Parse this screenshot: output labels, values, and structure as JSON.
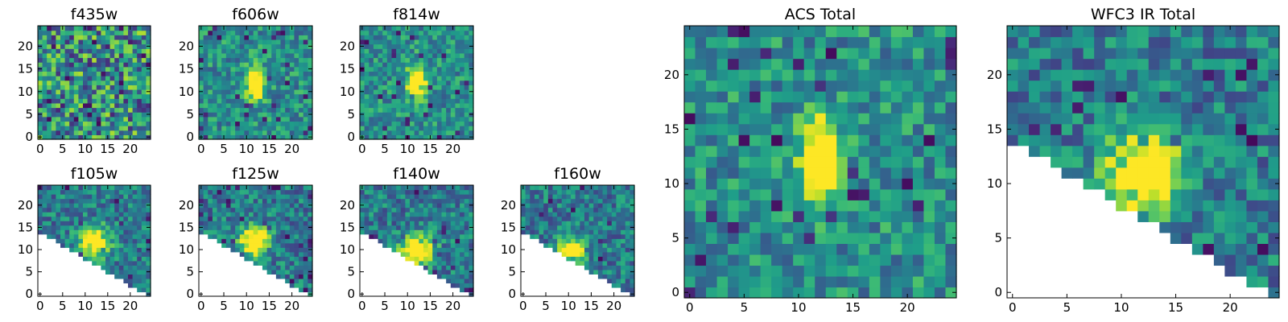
{
  "chart_data": [
    {
      "type": "heatmap",
      "title": "f435w",
      "xticks": [
        "0",
        "5",
        "10",
        "15",
        "20"
      ],
      "yticks": [
        "0",
        "5",
        "10",
        "15",
        "20"
      ],
      "xlim": [
        0,
        25
      ],
      "ylim": [
        0,
        25
      ],
      "grid_size": [
        25,
        25
      ],
      "colormap": "viridis",
      "source_masked": false,
      "peak": null
    },
    {
      "type": "heatmap",
      "title": "f606w",
      "xticks": [
        "0",
        "5",
        "10",
        "15",
        "20"
      ],
      "yticks": [
        "0",
        "5",
        "10",
        "15",
        "20"
      ],
      "xlim": [
        0,
        25
      ],
      "ylim": [
        0,
        25
      ],
      "grid_size": [
        25,
        25
      ],
      "colormap": "viridis",
      "source_masked": false,
      "peak": {
        "x": 12,
        "y": 12,
        "sx": 1.3,
        "sy": 2.5,
        "amp": 1.0
      }
    },
    {
      "type": "heatmap",
      "title": "f814w",
      "xticks": [
        "0",
        "5",
        "10",
        "15",
        "20"
      ],
      "yticks": [
        "0",
        "5",
        "10",
        "15",
        "20"
      ],
      "xlim": [
        0,
        25
      ],
      "ylim": [
        0,
        25
      ],
      "grid_size": [
        25,
        25
      ],
      "colormap": "viridis",
      "source_masked": false,
      "peak": {
        "x": 12,
        "y": 12,
        "sx": 1.3,
        "sy": 2.5,
        "amp": 1.0
      }
    },
    {
      "type": "heatmap",
      "title": "f105w",
      "xticks": [
        "0",
        "5",
        "10",
        "15",
        "20"
      ],
      "yticks": [
        "0",
        "5",
        "10",
        "15",
        "20"
      ],
      "xlim": [
        0,
        25
      ],
      "ylim": [
        0,
        25
      ],
      "grid_size": [
        25,
        25
      ],
      "colormap": "viridis",
      "source_masked": true,
      "peak": {
        "x": 12,
        "y": 12,
        "sx": 2.2,
        "sy": 2.2,
        "amp": 0.9
      }
    },
    {
      "type": "heatmap",
      "title": "f125w",
      "xticks": [
        "0",
        "5",
        "10",
        "15",
        "20"
      ],
      "yticks": [
        "0",
        "5",
        "10",
        "15",
        "20"
      ],
      "xlim": [
        0,
        25
      ],
      "ylim": [
        0,
        25
      ],
      "grid_size": [
        25,
        25
      ],
      "colormap": "viridis",
      "source_masked": true,
      "peak": {
        "x": 12,
        "y": 12,
        "sx": 2.2,
        "sy": 2.2,
        "amp": 0.9
      }
    },
    {
      "type": "heatmap",
      "title": "f140w",
      "xticks": [
        "0",
        "5",
        "10",
        "15",
        "20"
      ],
      "yticks": [
        "0",
        "5",
        "10",
        "15",
        "20"
      ],
      "xlim": [
        0,
        25
      ],
      "ylim": [
        0,
        25
      ],
      "grid_size": [
        25,
        25
      ],
      "colormap": "viridis",
      "source_masked": true,
      "peak": {
        "x": 12,
        "y": 10,
        "sx": 2.4,
        "sy": 2.2,
        "amp": 0.9
      }
    },
    {
      "type": "heatmap",
      "title": "f160w",
      "xticks": [
        "0",
        "5",
        "10",
        "15",
        "20"
      ],
      "yticks": [
        "0",
        "5",
        "10",
        "15",
        "20"
      ],
      "xlim": [
        0,
        25
      ],
      "ylim": [
        0,
        25
      ],
      "grid_size": [
        25,
        25
      ],
      "colormap": "viridis",
      "source_masked": true,
      "peak": {
        "x": 11,
        "y": 10,
        "sx": 2.0,
        "sy": 1.8,
        "amp": 0.9
      }
    },
    {
      "type": "heatmap",
      "title": "ACS Total",
      "xticks": [
        "0",
        "5",
        "10",
        "15",
        "20"
      ],
      "yticks": [
        "0",
        "5",
        "10",
        "15",
        "20"
      ],
      "xlim": [
        0,
        25
      ],
      "ylim": [
        0,
        25
      ],
      "grid_size": [
        25,
        25
      ],
      "colormap": "viridis",
      "source_masked": false,
      "peak": {
        "x": 12,
        "y": 12,
        "sx": 1.2,
        "sy": 2.6,
        "amp": 1.0
      }
    },
    {
      "type": "heatmap",
      "title": "WFC3 IR Total",
      "xticks": [
        "0",
        "5",
        "10",
        "15",
        "20"
      ],
      "yticks": [
        "0",
        "5",
        "10",
        "15",
        "20"
      ],
      "xlim": [
        0,
        25
      ],
      "ylim": [
        0,
        25
      ],
      "grid_size": [
        25,
        25
      ],
      "colormap": "viridis",
      "source_masked": true,
      "peak": {
        "x": 12,
        "y": 11,
        "sx": 2.4,
        "sy": 2.3,
        "amp": 0.95
      }
    }
  ]
}
